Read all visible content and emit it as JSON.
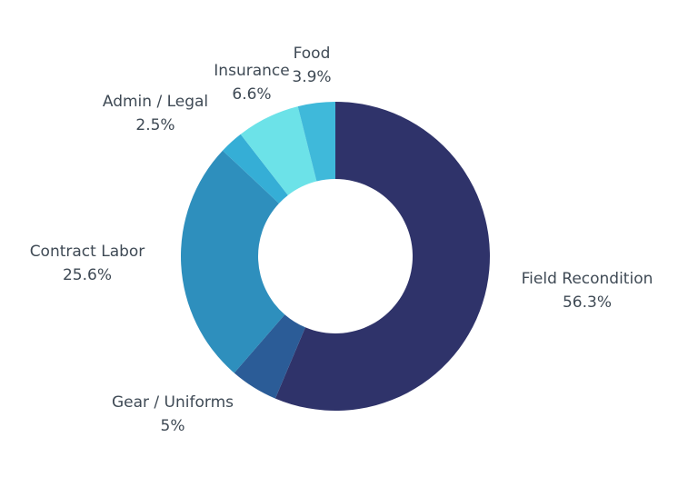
{
  "chart_data": {
    "type": "donut",
    "title": "",
    "slices": [
      {
        "label": "Field Recondition",
        "value": 56.3,
        "value_label": "56.3%",
        "color": "#2f336a"
      },
      {
        "label": "Gear / Uniforms",
        "value": 5,
        "value_label": "5%",
        "color": "#2b5c97"
      },
      {
        "label": "Contract Labor",
        "value": 25.6,
        "value_label": "25.6%",
        "color": "#2e8fbd"
      },
      {
        "label": "Admin / Legal",
        "value": 2.5,
        "value_label": "2.5%",
        "color": "#35aed6"
      },
      {
        "label": "Insurance",
        "value": 6.6,
        "value_label": "6.6%",
        "color": "#6ce2e8"
      },
      {
        "label": "Food",
        "value": 3.9,
        "value_label": "3.9%",
        "color": "#3fb9da"
      }
    ],
    "start": "top",
    "direction": "clockwise",
    "legend": "none"
  }
}
